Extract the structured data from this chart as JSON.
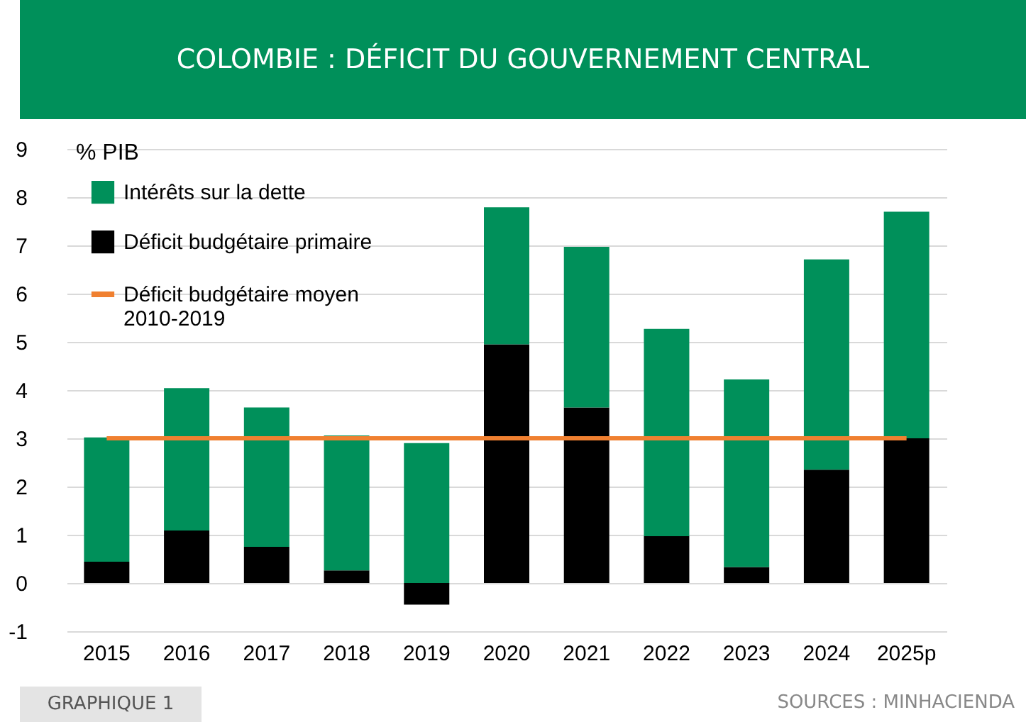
{
  "chart_data": {
    "type": "bar",
    "title": "COLOMBIE : DÉFICIT DU GOUVERNEMENT CENTRAL",
    "ylabel": "% PIB",
    "categories": [
      "2015",
      "2016",
      "2017",
      "2018",
      "2019",
      "2020",
      "2021",
      "2022",
      "2023",
      "2024",
      "2025p"
    ],
    "stacked": true,
    "series": [
      {
        "name": "Déficit budgétaire primaire",
        "color": "#000000",
        "values": [
          0.44,
          1.09,
          0.75,
          0.26,
          -0.45,
          4.95,
          3.64,
          0.97,
          0.33,
          2.35,
          3.0
        ]
      },
      {
        "name": "Intérêts sur la dette",
        "color": "#00905a",
        "values": [
          2.58,
          2.95,
          2.89,
          2.8,
          2.9,
          2.84,
          3.33,
          4.3,
          3.89,
          4.36,
          4.7
        ]
      },
      {
        "name": "Déficit budgétaire moyen 2010-2019",
        "type": "line",
        "color": "#f08030",
        "values": [
          3,
          3,
          3,
          3,
          3,
          3,
          3,
          3,
          3,
          3,
          3
        ]
      }
    ],
    "ylim": [
      -1,
      9
    ],
    "yticks": [
      -1,
      0,
      1,
      2,
      3,
      4,
      5,
      6,
      7,
      8,
      9
    ],
    "grid": "y",
    "legend": "top left",
    "annotations": [
      "GRAPHIQUE 1",
      "SOURCES : MINHACIENDA"
    ]
  }
}
